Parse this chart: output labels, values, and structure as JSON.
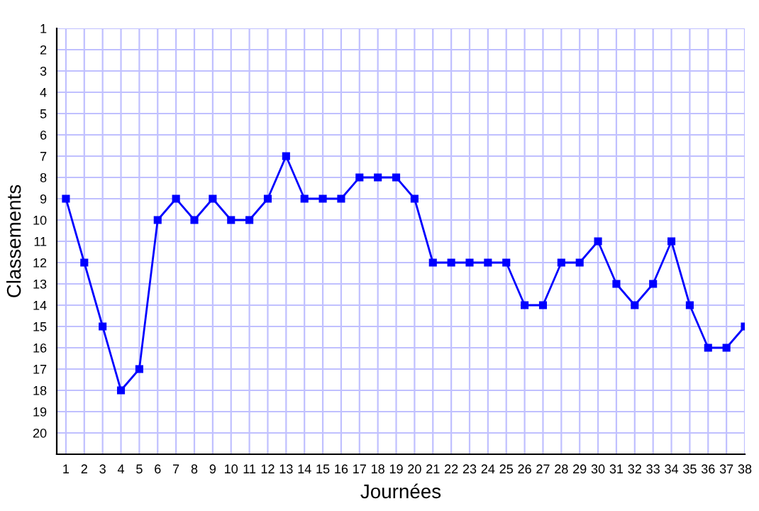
{
  "chart_data": {
    "type": "line",
    "xlabel": "Journées",
    "ylabel": "Classements",
    "x": [
      1,
      2,
      3,
      4,
      5,
      6,
      7,
      8,
      9,
      10,
      11,
      12,
      13,
      14,
      15,
      16,
      17,
      18,
      19,
      20,
      21,
      22,
      23,
      24,
      25,
      26,
      27,
      28,
      29,
      30,
      31,
      32,
      33,
      34,
      35,
      36,
      37,
      38
    ],
    "series": [
      {
        "color": "#0000ff",
        "values": [
          9,
          12,
          15,
          18,
          17,
          10,
          9,
          10,
          9,
          10,
          10,
          9,
          7,
          9,
          9,
          9,
          8,
          8,
          8,
          9,
          12,
          12,
          12,
          12,
          12,
          14,
          14,
          12,
          12,
          11,
          13,
          14,
          13,
          11,
          14,
          16,
          16,
          15
        ]
      }
    ],
    "xlim": [
      0.5,
      38
    ],
    "xticks": [
      1,
      2,
      3,
      4,
      5,
      6,
      7,
      8,
      9,
      10,
      11,
      12,
      13,
      14,
      15,
      16,
      17,
      18,
      19,
      20,
      21,
      22,
      23,
      24,
      25,
      26,
      27,
      28,
      29,
      30,
      31,
      32,
      33,
      34,
      35,
      36,
      37,
      38
    ],
    "ylim": [
      21,
      1
    ],
    "yticks": [
      1,
      2,
      3,
      4,
      5,
      6,
      7,
      8,
      9,
      10,
      11,
      12,
      13,
      14,
      15,
      16,
      17,
      18,
      19,
      20
    ],
    "grid": true,
    "marker": "square",
    "line_style": "solid"
  }
}
